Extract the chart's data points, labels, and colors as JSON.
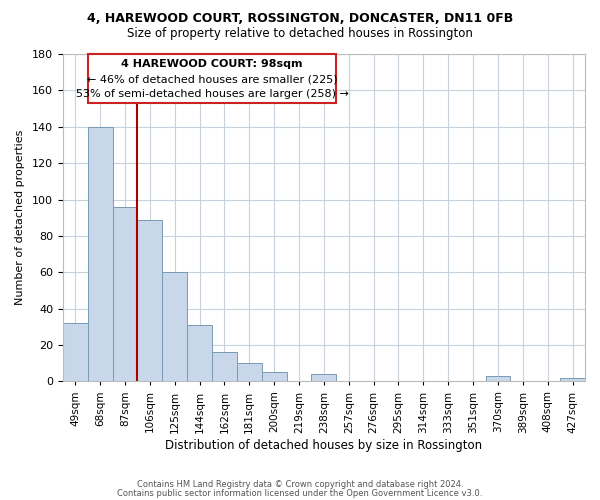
{
  "title": "4, HAREWOOD COURT, ROSSINGTON, DONCASTER, DN11 0FB",
  "subtitle": "Size of property relative to detached houses in Rossington",
  "xlabel": "Distribution of detached houses by size in Rossington",
  "ylabel": "Number of detached properties",
  "bar_color": "#c8d8ea",
  "bar_edge_color": "#7a9ab5",
  "categories": [
    "49sqm",
    "68sqm",
    "87sqm",
    "106sqm",
    "125sqm",
    "144sqm",
    "162sqm",
    "181sqm",
    "200sqm",
    "219sqm",
    "238sqm",
    "257sqm",
    "276sqm",
    "295sqm",
    "314sqm",
    "333sqm",
    "351sqm",
    "370sqm",
    "389sqm",
    "408sqm",
    "427sqm"
  ],
  "values": [
    32,
    140,
    96,
    89,
    60,
    31,
    16,
    10,
    5,
    0,
    4,
    0,
    0,
    0,
    0,
    0,
    0,
    3,
    0,
    0,
    2
  ],
  "ylim": [
    0,
    180
  ],
  "yticks": [
    0,
    20,
    40,
    60,
    80,
    100,
    120,
    140,
    160,
    180
  ],
  "vline_color": "#aa0000",
  "annotation_title": "4 HAREWOOD COURT: 98sqm",
  "annotation_line1": "← 46% of detached houses are smaller (225)",
  "annotation_line2": "53% of semi-detached houses are larger (258) →",
  "annotation_box_color": "#ffffff",
  "annotation_box_edge": "#cc2222",
  "footer1": "Contains HM Land Registry data © Crown copyright and database right 2024.",
  "footer2": "Contains public sector information licensed under the Open Government Licence v3.0.",
  "background_color": "#ffffff",
  "grid_color": "#c8d2dc"
}
